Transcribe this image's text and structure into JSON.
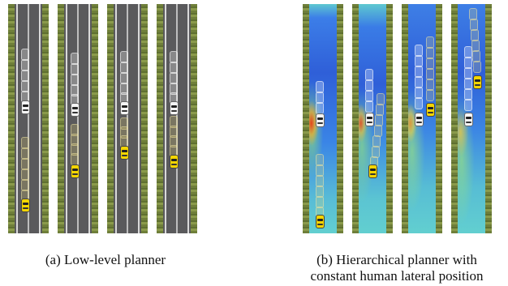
{
  "captions": {
    "a": "(a) Low-level planner",
    "b_line1": "(b) Hierarchical planner with",
    "b_line2": "constant human lateral position"
  },
  "colors": {
    "grass": "#7a8a40",
    "road": "#5a5a5c",
    "heat_low": "#2f5fd8",
    "heat_mid": "#5cc7c0",
    "heat_high": "#e04a20",
    "white_car": "#f4f4f4",
    "yellow_car": "#f3d500"
  },
  "icons": [
    "white-car-icon",
    "yellow-car-icon"
  ]
}
